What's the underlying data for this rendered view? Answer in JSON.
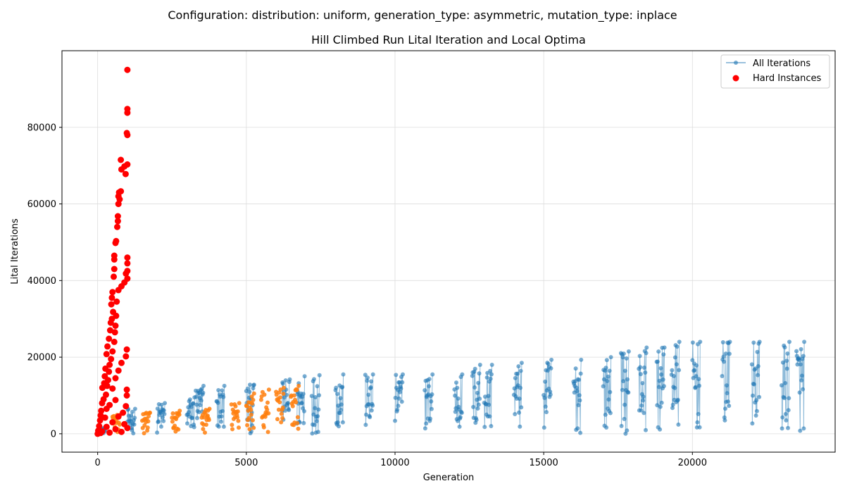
{
  "suptitle": "Configuration: distribution: uniform, generation_type: asymmetric, mutation_type: inplace",
  "chart_data": {
    "type": "scatter",
    "title": "Hill Climbed Run Lital Iteration and Local Optima",
    "xlabel": "Generation",
    "ylabel": "Lital Iterations",
    "xlim": [
      -1200,
      24800
    ],
    "ylim": [
      -4800,
      100000
    ],
    "x_ticks": [
      0,
      5000,
      10000,
      15000,
      20000
    ],
    "x_tick_labels": [
      "0",
      "5000",
      "10000",
      "15000",
      "20000"
    ],
    "y_ticks": [
      0,
      20000,
      40000,
      60000,
      80000
    ],
    "y_tick_labels": [
      "0",
      "20000",
      "40000",
      "60000",
      "80000"
    ],
    "grid": true,
    "legend": {
      "placement": "top-right",
      "entries": [
        "All Iterations",
        "Hard Instances"
      ]
    },
    "colors": {
      "all_iterations": "#1f77b4",
      "local_optima": "#ff7f0e",
      "hard_instances": "#ff0000"
    },
    "series": [
      {
        "name": "All Iterations",
        "style": "line-marker",
        "color": "#1f77b4",
        "batches": [
          {
            "x": 0,
            "peak": 1500
          },
          {
            "x": 1000,
            "peak": 6500
          },
          {
            "x": 2000,
            "peak": 8000
          },
          {
            "x": 3000,
            "peak": 9500
          },
          {
            "x": 3300,
            "peak": 12500
          },
          {
            "x": 4000,
            "peak": 12500
          },
          {
            "x": 5000,
            "peak": 12800
          },
          {
            "x": 6200,
            "peak": 14200
          },
          {
            "x": 6700,
            "peak": 15000
          },
          {
            "x": 7200,
            "peak": 15300
          },
          {
            "x": 8000,
            "peak": 15500
          },
          {
            "x": 9000,
            "peak": 15500
          },
          {
            "x": 10000,
            "peak": 15500
          },
          {
            "x": 11000,
            "peak": 15500
          },
          {
            "x": 12000,
            "peak": 15500
          },
          {
            "x": 12600,
            "peak": 18000
          },
          {
            "x": 13000,
            "peak": 18000
          },
          {
            "x": 14000,
            "peak": 18500
          },
          {
            "x": 15000,
            "peak": 19300
          },
          {
            "x": 16000,
            "peak": 19300
          },
          {
            "x": 17000,
            "peak": 20000
          },
          {
            "x": 17600,
            "peak": 21500
          },
          {
            "x": 18200,
            "peak": 22500
          },
          {
            "x": 18800,
            "peak": 22500
          },
          {
            "x": 19300,
            "peak": 24000
          },
          {
            "x": 20000,
            "peak": 24000
          },
          {
            "x": 21000,
            "peak": 24000
          },
          {
            "x": 22000,
            "peak": 24000
          },
          {
            "x": 23000,
            "peak": 24000
          },
          {
            "x": 23500,
            "peak": 24000
          }
        ]
      },
      {
        "name": "",
        "style": "scatter",
        "color": "#ff7f0e",
        "batches": [
          {
            "x": 500,
            "peak": 5000
          },
          {
            "x": 1500,
            "peak": 5500
          },
          {
            "x": 2500,
            "peak": 6000
          },
          {
            "x": 3500,
            "peak": 6500
          },
          {
            "x": 4500,
            "peak": 8000
          },
          {
            "x": 5000,
            "peak": 10500
          },
          {
            "x": 5500,
            "peak": 11500
          },
          {
            "x": 6000,
            "peak": 12000
          },
          {
            "x": 6500,
            "peak": 12500
          }
        ]
      },
      {
        "name": "Hard Instances",
        "style": "scatter",
        "color": "#ff0000",
        "points": [
          [
            1000,
            95000
          ],
          [
            1000,
            84800
          ],
          [
            1000,
            83800
          ],
          [
            980,
            78500
          ],
          [
            1000,
            78000
          ],
          [
            780,
            71500
          ],
          [
            1000,
            70300
          ],
          [
            900,
            69800
          ],
          [
            800,
            69000
          ],
          [
            940,
            67800
          ],
          [
            780,
            63300
          ],
          [
            720,
            63000
          ],
          [
            700,
            62000
          ],
          [
            740,
            61200
          ],
          [
            700,
            60000
          ],
          [
            680,
            56800
          ],
          [
            680,
            55500
          ],
          [
            660,
            54000
          ],
          [
            620,
            50300
          ],
          [
            600,
            49800
          ],
          [
            560,
            46500
          ],
          [
            560,
            45500
          ],
          [
            1000,
            46000
          ],
          [
            1000,
            44500
          ],
          [
            560,
            43000
          ],
          [
            1000,
            42500
          ],
          [
            950,
            41800
          ],
          [
            540,
            41000
          ],
          [
            1000,
            40500
          ],
          [
            900,
            39500
          ],
          [
            800,
            38500
          ],
          [
            500,
            37000
          ],
          [
            700,
            37500
          ],
          [
            480,
            35500
          ],
          [
            640,
            34500
          ],
          [
            460,
            33800
          ],
          [
            520,
            31800
          ],
          [
            480,
            30000
          ],
          [
            620,
            30800
          ],
          [
            440,
            29000
          ],
          [
            600,
            28200
          ],
          [
            420,
            27000
          ],
          [
            580,
            26500
          ],
          [
            380,
            24800
          ],
          [
            560,
            24000
          ],
          [
            330,
            22800
          ],
          [
            980,
            22000
          ],
          [
            500,
            21500
          ],
          [
            300,
            20800
          ],
          [
            950,
            20200
          ],
          [
            450,
            19500
          ],
          [
            400,
            18000
          ],
          [
            800,
            18500
          ],
          [
            260,
            17000
          ],
          [
            380,
            16200
          ],
          [
            700,
            16500
          ],
          [
            240,
            15000
          ],
          [
            350,
            14000
          ],
          [
            600,
            14500
          ],
          [
            220,
            13200
          ],
          [
            320,
            12500
          ],
          [
            160,
            12000
          ],
          [
            980,
            11500
          ],
          [
            500,
            11800
          ],
          [
            980,
            10000
          ],
          [
            280,
            10200
          ],
          [
            200,
            9000
          ],
          [
            600,
            8800
          ],
          [
            150,
            8000
          ],
          [
            400,
            7500
          ],
          [
            950,
            7200
          ],
          [
            120,
            6000
          ],
          [
            300,
            6500
          ],
          [
            850,
            5500
          ],
          [
            100,
            4800
          ],
          [
            250,
            4200
          ],
          [
            700,
            4500
          ],
          [
            80,
            3500
          ],
          [
            500,
            3000
          ],
          [
            900,
            2500
          ],
          [
            50,
            2000
          ],
          [
            300,
            1800
          ],
          [
            20,
            800
          ],
          [
            150,
            600
          ],
          [
            600,
            1200
          ],
          [
            0,
            0
          ],
          [
            100,
            200
          ],
          [
            400,
            300
          ],
          [
            800,
            500
          ],
          [
            1000,
            1500
          ]
        ]
      }
    ]
  }
}
